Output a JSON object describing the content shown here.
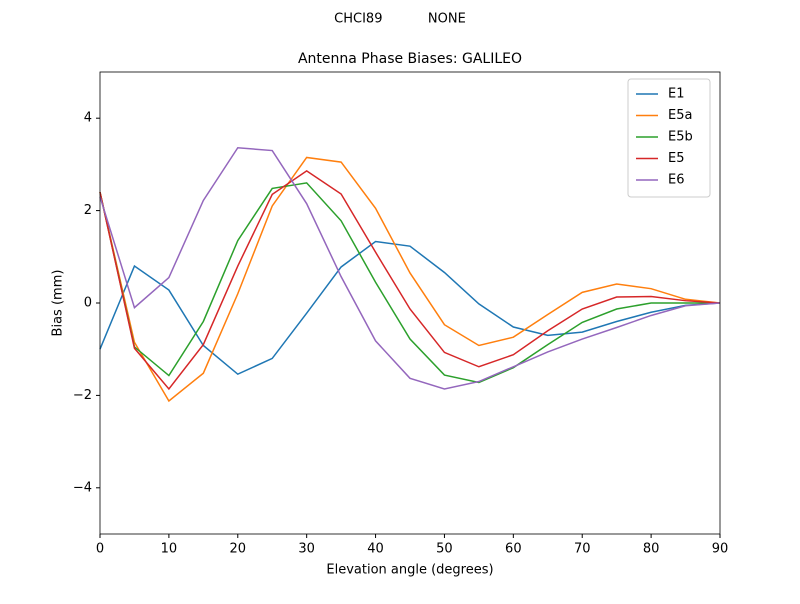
{
  "chart_data": {
    "type": "line",
    "suptitle": "CHCI89           NONE",
    "title": "Antenna Phase Biases: GALILEO",
    "x_label": "Elevation angle (degrees)",
    "y_label": "Bias (mm)",
    "x": [
      0,
      5,
      10,
      15,
      20,
      25,
      30,
      35,
      40,
      45,
      50,
      55,
      60,
      65,
      70,
      75,
      80,
      85,
      90
    ],
    "series": [
      {
        "name": "E1",
        "color": "#1f77b4",
        "values": [
          -1.0,
          0.8,
          0.28,
          -0.92,
          -1.54,
          -1.2,
          -0.22,
          0.78,
          1.33,
          1.23,
          0.66,
          -0.02,
          -0.52,
          -0.7,
          -0.63,
          -0.4,
          -0.2,
          -0.05,
          0
        ]
      },
      {
        "name": "E5a",
        "color": "#ff7f0e",
        "values": [
          2.4,
          -0.85,
          -2.12,
          -1.52,
          0.2,
          2.1,
          3.15,
          3.05,
          2.05,
          0.65,
          -0.47,
          -0.92,
          -0.74,
          -0.25,
          0.23,
          0.41,
          0.31,
          0.08,
          0
        ]
      },
      {
        "name": "E5b",
        "color": "#2ca02c",
        "values": [
          2.4,
          -0.95,
          -1.57,
          -0.4,
          1.35,
          2.48,
          2.6,
          1.78,
          0.45,
          -0.78,
          -1.56,
          -1.72,
          -1.4,
          -0.9,
          -0.42,
          -0.13,
          0.0,
          0.0,
          0
        ]
      },
      {
        "name": "E5",
        "color": "#d62728",
        "values": [
          2.4,
          -0.98,
          -1.86,
          -0.9,
          0.8,
          2.35,
          2.86,
          2.36,
          1.1,
          -0.13,
          -1.07,
          -1.38,
          -1.12,
          -0.6,
          -0.13,
          0.13,
          0.14,
          0.05,
          0
        ]
      },
      {
        "name": "E6",
        "color": "#9467bd",
        "values": [
          2.3,
          -0.1,
          0.55,
          2.22,
          3.36,
          3.3,
          2.15,
          0.57,
          -0.82,
          -1.63,
          -1.86,
          -1.7,
          -1.38,
          -1.06,
          -0.78,
          -0.53,
          -0.27,
          -0.06,
          0
        ]
      }
    ],
    "xlim": [
      0,
      90
    ],
    "ylim": [
      -5,
      5
    ],
    "xticks": [
      0,
      10,
      20,
      30,
      40,
      50,
      60,
      70,
      80,
      90
    ],
    "yticks": [
      {
        "value": -4,
        "label": "−4"
      },
      {
        "value": -2,
        "label": "−2"
      },
      0,
      2,
      4
    ],
    "grid": false,
    "legend": "upper right"
  }
}
